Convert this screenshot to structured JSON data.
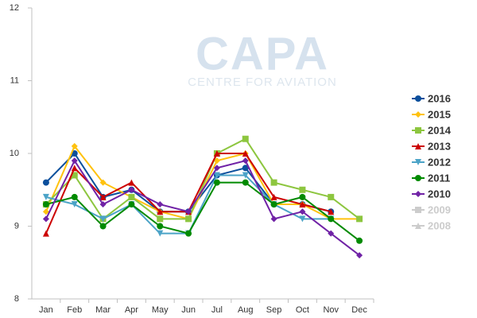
{
  "chart_data": {
    "type": "line",
    "watermark": {
      "title": "CAPA",
      "subtitle": "CENTRE FOR AVIATION"
    },
    "categories": [
      "Jan",
      "Feb",
      "Mar",
      "Apr",
      "May",
      "Jun",
      "Jul",
      "Aug",
      "Sep",
      "Oct",
      "Nov",
      "Dec"
    ],
    "ylim": [
      8,
      12
    ],
    "yticks": [
      8,
      9,
      10,
      11,
      12
    ],
    "grid": false,
    "legend": "right",
    "series": [
      {
        "name": "2016",
        "color": "#0b4f9c",
        "marker": "circle",
        "visible": true,
        "values": [
          9.6,
          10.0,
          9.4,
          9.5,
          9.2,
          9.2,
          9.7,
          9.8,
          9.3,
          9.3,
          9.2,
          null
        ]
      },
      {
        "name": "2015",
        "color": "#ffc20e",
        "marker": "diamond",
        "visible": true,
        "values": [
          9.2,
          10.1,
          9.6,
          9.4,
          9.2,
          9.1,
          9.9,
          10.0,
          9.3,
          9.3,
          9.1,
          9.1
        ]
      },
      {
        "name": "2014",
        "color": "#8dc63f",
        "marker": "square",
        "visible": true,
        "values": [
          9.3,
          9.7,
          9.1,
          9.4,
          9.1,
          9.1,
          10.0,
          10.2,
          9.6,
          9.5,
          9.4,
          9.1
        ]
      },
      {
        "name": "2013",
        "color": "#cc0000",
        "marker": "triangle",
        "visible": true,
        "values": [
          8.9,
          9.8,
          9.4,
          9.6,
          9.2,
          9.2,
          10.0,
          10.0,
          9.4,
          9.3,
          9.2,
          null
        ]
      },
      {
        "name": "2012",
        "color": "#4ba3c7",
        "marker": "triangle-down",
        "visible": true,
        "values": [
          9.4,
          9.3,
          9.1,
          9.3,
          8.9,
          8.9,
          9.7,
          9.7,
          9.3,
          9.1,
          9.1,
          null
        ]
      },
      {
        "name": "2011",
        "color": "#008a00",
        "marker": "circle",
        "visible": true,
        "values": [
          9.3,
          9.4,
          9.0,
          9.3,
          9.0,
          8.9,
          9.6,
          9.6,
          9.3,
          9.4,
          9.1,
          8.8
        ]
      },
      {
        "name": "2010",
        "color": "#7022a6",
        "marker": "diamond",
        "visible": true,
        "values": [
          9.1,
          9.9,
          9.3,
          9.5,
          9.3,
          9.2,
          9.8,
          9.9,
          9.1,
          9.2,
          8.9,
          8.6
        ]
      },
      {
        "name": "2009",
        "color": "#cccccc",
        "marker": "square",
        "visible": false,
        "values": [
          null,
          null,
          null,
          null,
          null,
          null,
          null,
          null,
          null,
          null,
          null,
          null
        ]
      },
      {
        "name": "2008",
        "color": "#cccccc",
        "marker": "triangle",
        "visible": false,
        "values": [
          null,
          null,
          null,
          null,
          null,
          null,
          null,
          null,
          null,
          null,
          null,
          null
        ]
      }
    ]
  }
}
